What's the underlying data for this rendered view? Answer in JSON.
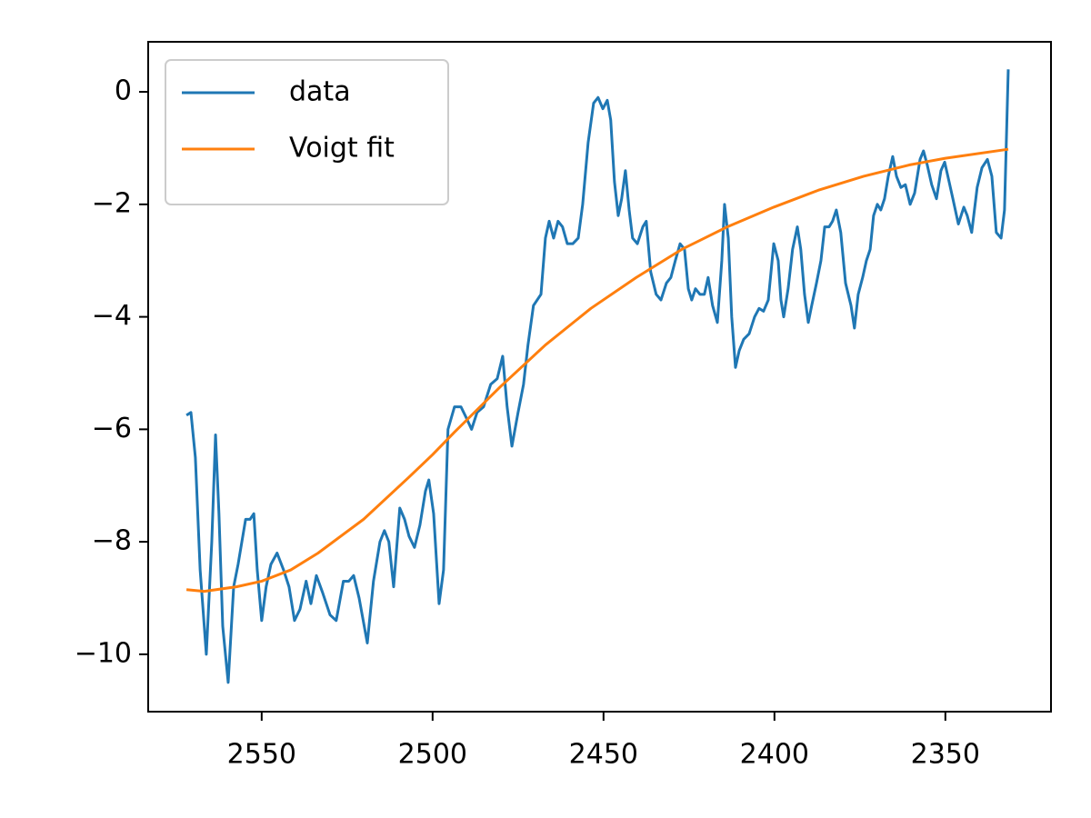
{
  "chart_data": {
    "type": "line",
    "xlim": [
      2583.2,
      2319.1
    ],
    "ylim": [
      -11.02,
      0.89
    ],
    "xticks": [
      2550,
      2500,
      2450,
      2400,
      2350
    ],
    "yticks": [
      {
        "value": -10,
        "label": "−10"
      },
      {
        "value": -8,
        "label": "−8"
      },
      {
        "value": -6,
        "label": "−6"
      },
      {
        "value": -4,
        "label": "−4"
      },
      {
        "value": -2,
        "label": "−2"
      },
      0
    ],
    "legend": "upper left",
    "series": [
      {
        "name": "data",
        "color": "#1f77b4",
        "x": [
          2572.0,
          2570.7,
          2569.4,
          2568.0,
          2566.2,
          2564.6,
          2563.5,
          2562.5,
          2561.4,
          2559.8,
          2558.2,
          2556.9,
          2554.7,
          2553.4,
          2552.3,
          2551.3,
          2550.0,
          2548.7,
          2547.3,
          2545.5,
          2543.6,
          2542.0,
          2540.4,
          2538.8,
          2537.0,
          2535.6,
          2534.0,
          2532.2,
          2530.0,
          2528.2,
          2526.1,
          2524.5,
          2523.1,
          2521.5,
          2519.1,
          2517.3,
          2515.4,
          2514.1,
          2512.8,
          2511.4,
          2509.6,
          2508.2,
          2506.9,
          2505.3,
          2503.7,
          2502.1,
          2501.1,
          2499.7,
          2498.1,
          2496.8,
          2495.5,
          2493.6,
          2491.7,
          2490.1,
          2488.6,
          2487.0,
          2485.1,
          2483.0,
          2481.1,
          2479.5,
          2478.2,
          2476.8,
          2475.0,
          2473.4,
          2472.1,
          2470.5,
          2468.3,
          2467.0,
          2465.9,
          2464.6,
          2463.3,
          2462.0,
          2460.6,
          2459.0,
          2457.4,
          2456.1,
          2454.5,
          2452.9,
          2451.6,
          2450.2,
          2448.9,
          2447.9,
          2446.8,
          2445.7,
          2444.7,
          2443.6,
          2442.5,
          2441.5,
          2440.1,
          2438.5,
          2437.5,
          2436.2,
          2434.6,
          2433.2,
          2431.6,
          2430.3,
          2429.0,
          2427.6,
          2426.3,
          2425.2,
          2424.2,
          2423.1,
          2421.8,
          2420.5,
          2419.4,
          2418.1,
          2416.7,
          2415.4,
          2414.6,
          2413.5,
          2412.5,
          2411.4,
          2410.3,
          2409.0,
          2407.4,
          2405.8,
          2404.5,
          2403.2,
          2401.8,
          2400.2,
          2398.9,
          2398.1,
          2397.3,
          2396.0,
          2394.7,
          2393.3,
          2392.3,
          2391.2,
          2390.1,
          2389.1,
          2387.7,
          2386.4,
          2385.3,
          2384.0,
          2383.0,
          2381.9,
          2380.6,
          2379.2,
          2377.6,
          2376.6,
          2375.5,
          2374.2,
          2373.1,
          2372.0,
          2371.0,
          2369.9,
          2368.9,
          2367.8,
          2366.7,
          2365.4,
          2364.3,
          2363.0,
          2361.7,
          2360.3,
          2359.0,
          2357.4,
          2356.4,
          2355.3,
          2354.0,
          2352.6,
          2351.3,
          2350.2,
          2348.9,
          2347.8,
          2346.2,
          2344.6,
          2343.6,
          2342.3,
          2340.7,
          2339.3,
          2337.7,
          2336.4,
          2335.1,
          2333.7,
          2332.7,
          2331.6
        ],
        "values": [
          -5.75,
          -5.7,
          -6.5,
          -8.5,
          -10.0,
          -8.0,
          -6.1,
          -7.5,
          -9.5,
          -10.5,
          -8.8,
          -8.4,
          -7.6,
          -7.6,
          -7.5,
          -8.5,
          -9.4,
          -8.8,
          -8.4,
          -8.2,
          -8.5,
          -8.8,
          -9.4,
          -9.2,
          -8.7,
          -9.1,
          -8.6,
          -8.9,
          -9.3,
          -9.4,
          -8.7,
          -8.7,
          -8.6,
          -9.0,
          -9.8,
          -8.7,
          -8.0,
          -7.8,
          -8.0,
          -8.8,
          -7.4,
          -7.6,
          -7.9,
          -8.1,
          -7.7,
          -7.1,
          -6.9,
          -7.5,
          -9.1,
          -8.5,
          -6.0,
          -5.6,
          -5.6,
          -5.8,
          -6.0,
          -5.7,
          -5.6,
          -5.2,
          -5.1,
          -4.7,
          -5.6,
          -6.3,
          -5.7,
          -5.2,
          -4.5,
          -3.8,
          -3.6,
          -2.6,
          -2.3,
          -2.6,
          -2.3,
          -2.4,
          -2.7,
          -2.7,
          -2.6,
          -2.0,
          -0.9,
          -0.2,
          -0.1,
          -0.3,
          -0.15,
          -0.5,
          -1.6,
          -2.2,
          -1.9,
          -1.4,
          -2.1,
          -2.6,
          -2.7,
          -2.4,
          -2.3,
          -3.2,
          -3.6,
          -3.7,
          -3.4,
          -3.3,
          -3.0,
          -2.7,
          -2.8,
          -3.5,
          -3.7,
          -3.5,
          -3.6,
          -3.6,
          -3.3,
          -3.8,
          -4.1,
          -3.0,
          -2.0,
          -2.6,
          -4.0,
          -4.9,
          -4.6,
          -4.4,
          -4.3,
          -4.0,
          -3.85,
          -3.9,
          -3.7,
          -2.7,
          -3.0,
          -3.7,
          -4.0,
          -3.5,
          -2.8,
          -2.4,
          -2.8,
          -3.6,
          -4.1,
          -3.8,
          -3.4,
          -3.0,
          -2.4,
          -2.4,
          -2.3,
          -2.1,
          -2.5,
          -3.4,
          -3.8,
          -4.2,
          -3.6,
          -3.3,
          -3.0,
          -2.8,
          -2.2,
          -2.0,
          -2.1,
          -1.9,
          -1.5,
          -1.15,
          -1.5,
          -1.7,
          -1.65,
          -2.0,
          -1.8,
          -1.2,
          -1.05,
          -1.3,
          -1.65,
          -1.9,
          -1.4,
          -1.25,
          -1.6,
          -1.9,
          -2.35,
          -2.05,
          -2.2,
          -2.5,
          -1.7,
          -1.35,
          -1.2,
          -1.5,
          -2.5,
          -2.6,
          -2.1,
          0.4
        ]
      },
      {
        "name": "Voigt fit",
        "color": "#ff7f0e",
        "x": [
          2572.0,
          2566.8,
          2557.4,
          2550.0,
          2541.5,
          2533.5,
          2520.2,
          2506.9,
          2500.0,
          2493.6,
          2480.3,
          2467.0,
          2453.7,
          2440.4,
          2427.1,
          2413.8,
          2400.2,
          2387.2,
          2373.9,
          2360.6,
          2350.0,
          2331.6
        ],
        "values": [
          -8.85,
          -8.88,
          -8.8,
          -8.7,
          -8.5,
          -8.2,
          -7.6,
          -6.85,
          -6.45,
          -6.05,
          -5.25,
          -4.5,
          -3.85,
          -3.3,
          -2.8,
          -2.4,
          -2.05,
          -1.75,
          -1.5,
          -1.3,
          -1.18,
          -1.02
        ]
      }
    ]
  }
}
